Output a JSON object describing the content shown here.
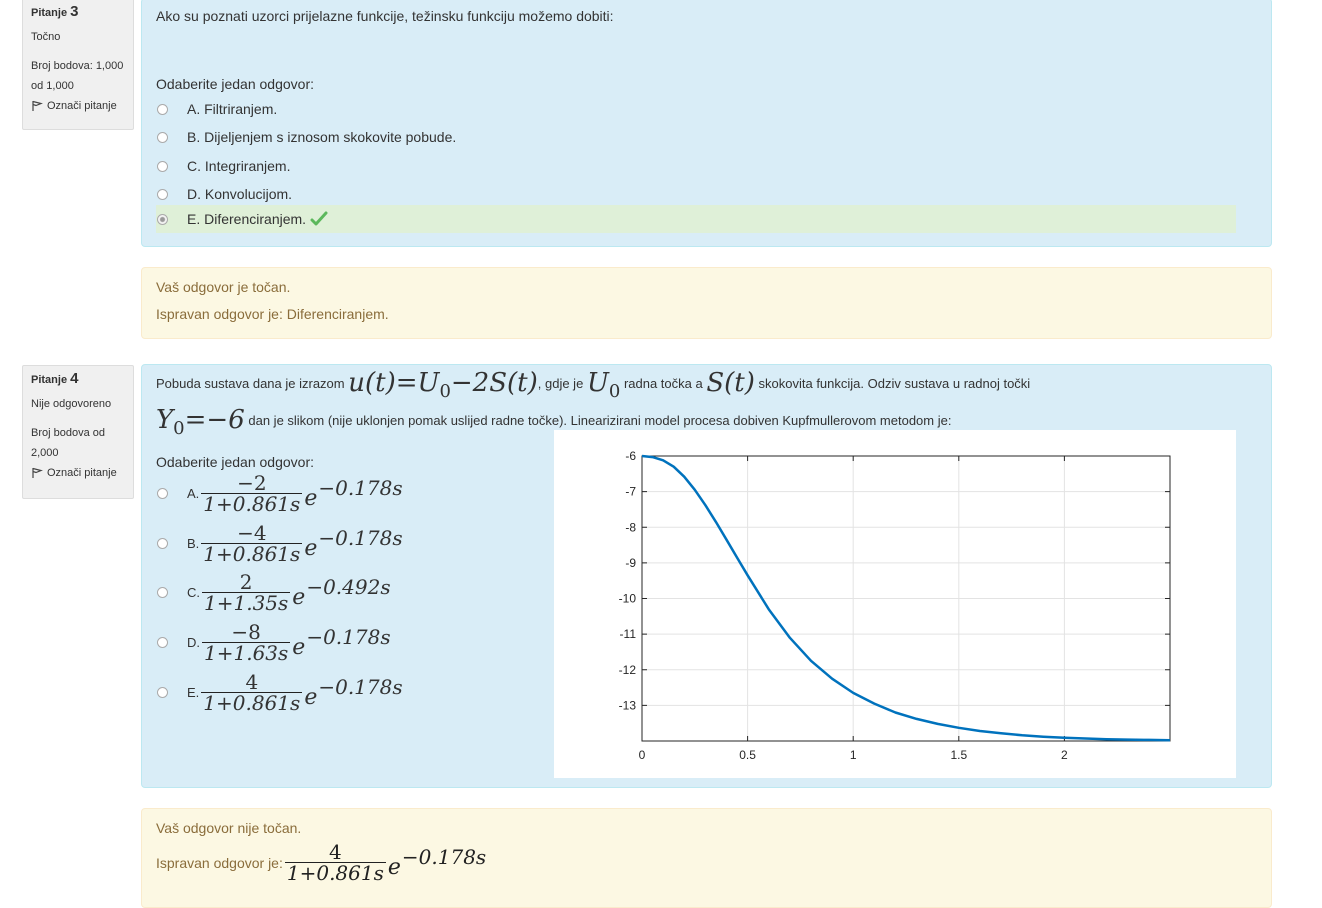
{
  "q3": {
    "label": "Pitanje",
    "number": "3",
    "state": "Točno",
    "grade_line1": "Broj bodova: 1,000",
    "grade_line2": "od 1,000",
    "flag_label": "Označi pitanje",
    "text": "Ako su poznati uzorci prijelazne funkcije, težinsku funkciju možemo dobiti:",
    "prompt": "Odaberite jedan odgovor:",
    "options": [
      {
        "letter": "A.",
        "text": "Filtriranjem."
      },
      {
        "letter": "B.",
        "text": "Dijeljenjem s iznosom skokovite pobude."
      },
      {
        "letter": "C.",
        "text": "Integriranjem."
      },
      {
        "letter": "D.",
        "text": "Konvolucijom."
      },
      {
        "letter": "E.",
        "text": "Diferenciranjem."
      }
    ],
    "feedback_line1": "Vaš odgovor je točan.",
    "feedback_line2": "Ispravan odgovor je: Diferenciranjem."
  },
  "q4": {
    "label": "Pitanje",
    "number": "4",
    "state": "Nije odgovoreno",
    "grade_line1": "Broj bodova od",
    "grade_line2": "2,000",
    "flag_label": "Označi pitanje",
    "text_part1": "Pobuda sustava dana je izrazom",
    "math_u": "u(t)=U",
    "math_u_sub": "0",
    "math_u_rest": "−2S(t)",
    "text_part2": ", gdje je",
    "math_U0": "U",
    "math_U0_sub": "0",
    "text_part3": "radna točka a",
    "math_St": "S(t)",
    "text_part4": "skokovita funkcija. Odziv sustava u radnoj točki",
    "math_Y0": "Y",
    "math_Y0_sub": "0",
    "math_Y0_rest": "=−6",
    "text_part5": "dan je slikom (nije uklonjen pomak uslijed radne točke). Linearizirani model procesa dobiven Kupfmullerovom metodom je:",
    "prompt": "Odaberite jedan odgovor:",
    "options": [
      {
        "letter": "A.",
        "num": "−2",
        "den": "1+0.861s",
        "exp": "−0.178s"
      },
      {
        "letter": "B.",
        "num": "−4",
        "den": "1+0.861s",
        "exp": "−0.178s"
      },
      {
        "letter": "C.",
        "num": "2",
        "den": "1+1.35s",
        "exp": "−0.492s"
      },
      {
        "letter": "D.",
        "num": "−8",
        "den": "1+1.63s",
        "exp": "−0.178s"
      },
      {
        "letter": "E.",
        "num": "4",
        "den": "1+0.861s",
        "exp": "−0.178s"
      }
    ],
    "e": "e",
    "feedback_line1": "Vaš odgovor nije točan.",
    "feedback_prefix": "Ispravan odgovor je:",
    "correct_num": "4",
    "correct_den": "1+0.861s",
    "correct_exp": "−0.178s"
  },
  "colors": {
    "info_bg": "#f0f0f0",
    "content_bg": "#d9edf7",
    "feedback_bg": "#fcf8e3",
    "feedback_text": "#8a6d3b",
    "correct_highlight": "#dff0d8",
    "check_green": "#5cb85c",
    "curve": "#0072bd"
  },
  "chart_data": {
    "type": "line",
    "title": "",
    "xlabel": "",
    "ylabel": "",
    "xlim": [
      0,
      2.5
    ],
    "ylim": [
      -14,
      -6
    ],
    "xticks": [
      0,
      0.5,
      1,
      1.5,
      2
    ],
    "xtick_labels": [
      "0",
      "0.5",
      "1",
      "1.5",
      "2"
    ],
    "yticks": [
      -6,
      -7,
      -8,
      -9,
      -10,
      -11,
      -12,
      -13
    ],
    "ytick_labels": [
      "-6",
      "-7",
      "-8",
      "-9",
      "-10",
      "-11",
      "-12",
      "-13"
    ],
    "grid": true,
    "series": [
      {
        "color": "#0072bd",
        "x": [
          0,
          0.05,
          0.1,
          0.15,
          0.2,
          0.25,
          0.3,
          0.35,
          0.4,
          0.45,
          0.5,
          0.6,
          0.7,
          0.8,
          0.9,
          1.0,
          1.1,
          1.2,
          1.3,
          1.4,
          1.5,
          1.6,
          1.7,
          1.8,
          1.9,
          2.0,
          2.1,
          2.2,
          2.3,
          2.4,
          2.5
        ],
        "y": [
          -6.0,
          -6.03,
          -6.12,
          -6.3,
          -6.58,
          -6.95,
          -7.38,
          -7.85,
          -8.35,
          -8.85,
          -9.35,
          -10.3,
          -11.1,
          -11.75,
          -12.25,
          -12.65,
          -12.95,
          -13.2,
          -13.38,
          -13.52,
          -13.63,
          -13.72,
          -13.78,
          -13.84,
          -13.88,
          -13.91,
          -13.93,
          -13.95,
          -13.96,
          -13.97,
          -13.98
        ]
      }
    ]
  }
}
